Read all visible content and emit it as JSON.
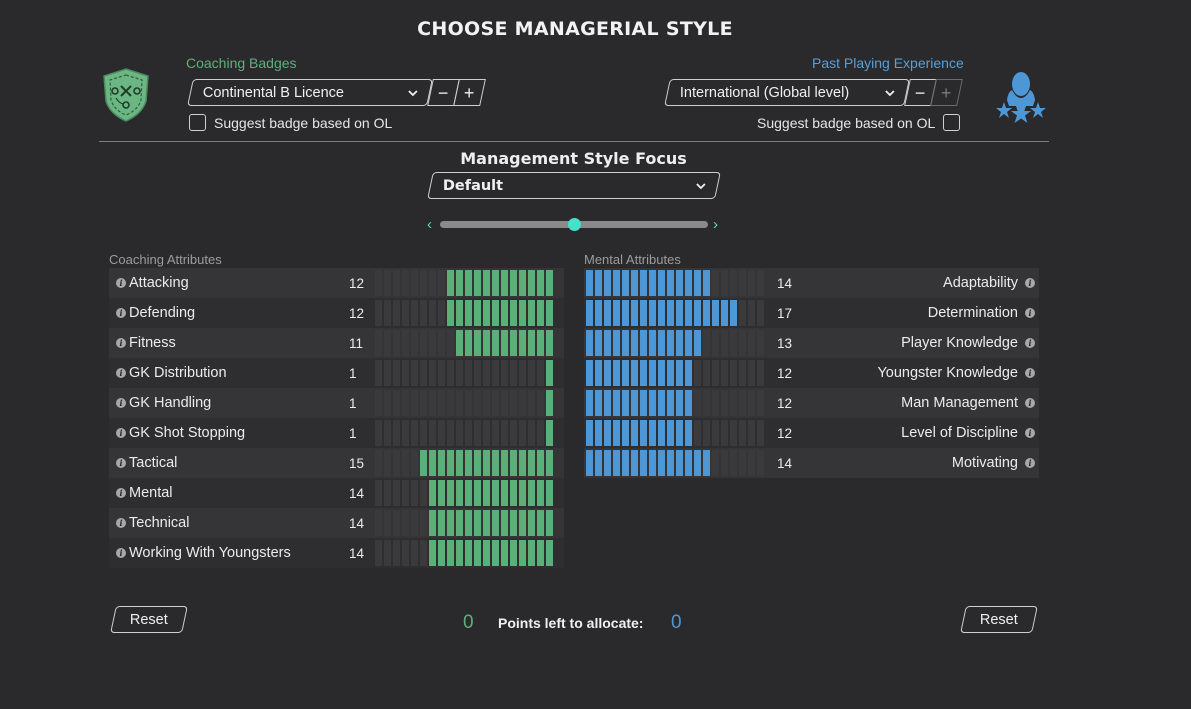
{
  "title": "CHOOSE MANAGERIAL STYLE",
  "coaching": {
    "label": "Coaching Badges",
    "selected": "Continental B Licence",
    "minus": "−",
    "plus": "+",
    "suggest_label": "Suggest badge based on OL"
  },
  "playing": {
    "label": "Past Playing Experience",
    "selected": "International (Global level)",
    "minus": "−",
    "plus": "+",
    "suggest_label": "Suggest badge based on OL"
  },
  "focus": {
    "title": "Management Style Focus",
    "selected": "Default",
    "slider_position": 0.5
  },
  "coaching_attributes": {
    "header": "Coaching Attributes",
    "max": 20,
    "items": [
      {
        "name": "Attacking",
        "value": 12
      },
      {
        "name": "Defending",
        "value": 12
      },
      {
        "name": "Fitness",
        "value": 11
      },
      {
        "name": "GK Distribution",
        "value": 1
      },
      {
        "name": "GK Handling",
        "value": 1
      },
      {
        "name": "GK Shot Stopping",
        "value": 1
      },
      {
        "name": "Tactical",
        "value": 15
      },
      {
        "name": "Mental",
        "value": 14
      },
      {
        "name": "Technical",
        "value": 14
      },
      {
        "name": "Working With Youngsters",
        "value": 14
      }
    ]
  },
  "mental_attributes": {
    "header": "Mental Attributes",
    "max": 20,
    "items": [
      {
        "name": "Adaptability",
        "value": 14
      },
      {
        "name": "Determination",
        "value": 17
      },
      {
        "name": "Player Knowledge",
        "value": 13
      },
      {
        "name": "Youngster Knowledge",
        "value": 12
      },
      {
        "name": "Man Management",
        "value": 12
      },
      {
        "name": "Level of Discipline",
        "value": 12
      },
      {
        "name": "Motivating",
        "value": 14
      }
    ]
  },
  "footer": {
    "reset_left": "Reset",
    "reset_right": "Reset",
    "points_label": "Points left to allocate:",
    "points_left_green": "0",
    "points_left_blue": "0"
  },
  "colors": {
    "coaching_accent": "#5bb07a",
    "playing_accent": "#4e97d6",
    "slider_accent": "#47e0c8"
  },
  "icons": {
    "coaching": "tactics-shield-icon",
    "playing": "player-stars-icon"
  }
}
